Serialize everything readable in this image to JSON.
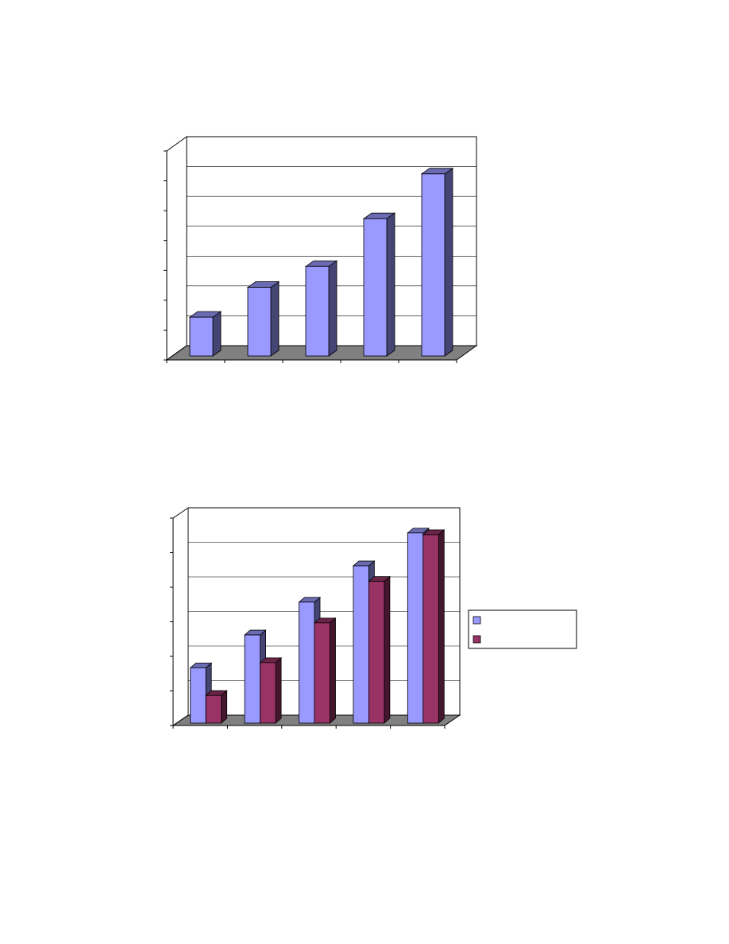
{
  "chart_data": [
    {
      "type": "bar3d",
      "categories": [
        null,
        null,
        null,
        null,
        null
      ],
      "series": [
        {
          "color": "#9999ff",
          "values": [
            1.3,
            2.3,
            3.0,
            4.6,
            6.1
          ]
        }
      ],
      "ylim": [
        0,
        7
      ],
      "yticks": [
        0,
        1,
        2,
        3,
        4,
        5,
        6,
        7
      ],
      "grid": true,
      "floor_color": "#808080"
    },
    {
      "type": "bar3d",
      "categories": [
        null,
        null,
        null,
        null,
        null
      ],
      "series": [
        {
          "color": "#9999ff",
          "values": [
            1.6,
            2.55,
            3.5,
            4.55,
            5.5
          ]
        },
        {
          "color": "#993366",
          "values": [
            0.8,
            1.75,
            2.9,
            4.1,
            5.45
          ]
        }
      ],
      "ylim": [
        0,
        6
      ],
      "yticks": [
        0,
        1,
        2,
        3,
        4,
        5,
        6
      ],
      "grid": true,
      "legend": "right",
      "floor_color": "#808080"
    }
  ]
}
